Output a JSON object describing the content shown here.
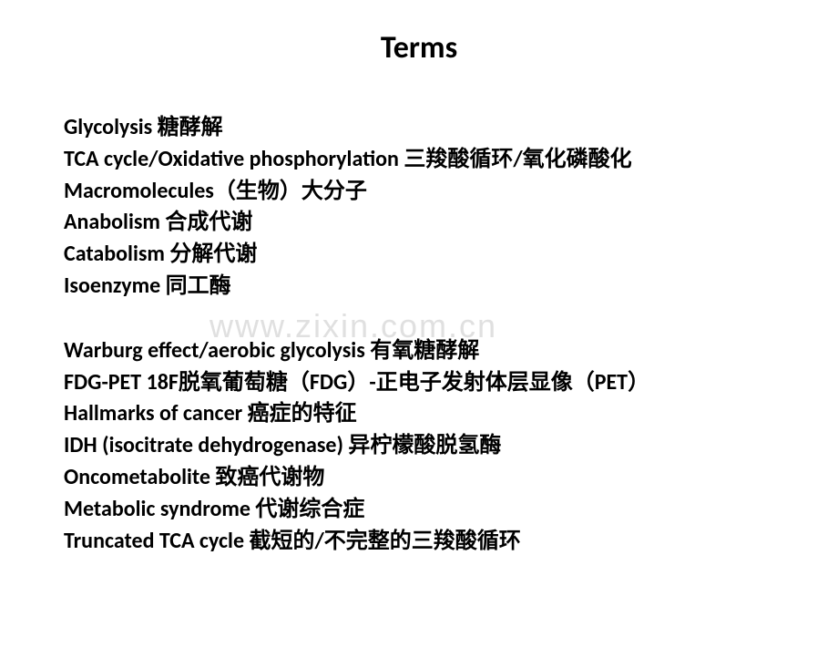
{
  "title": "Terms",
  "title_fontsize": 34,
  "term_fontsize": 24,
  "text_color": "#000000",
  "background_color": "#ffffff",
  "watermark": {
    "text": "www.zixin.com.cn",
    "color": "#e0e0e0",
    "fontsize": 36
  },
  "group1": {
    "line1": "Glycolysis 糖酵解",
    "line2": "TCA cycle/Oxidative phosphorylation 三羧酸循环/氧化磷酸化",
    "line3": "Macromolecules（生物）大分子",
    "line4": "Anabolism 合成代谢",
    "line5": "Catabolism 分解代谢",
    "line6": "Isoenzyme 同工酶"
  },
  "group2": {
    "line1": "Warburg effect/aerobic glycolysis 有氧糖酵解",
    "line2": "FDG-PET 18F脱氧葡萄糖（FDG）-正电子发射体层显像（PET）",
    "line3": "Hallmarks of cancer 癌症的特征",
    "line4": "IDH (isocitrate dehydrogenase) 异柠檬酸脱氢酶",
    "line5": "Oncometabolite 致癌代谢物",
    "line6": "Metabolic syndrome 代谢综合症",
    "line7": "Truncated TCA cycle 截短的/不完整的三羧酸循环"
  }
}
